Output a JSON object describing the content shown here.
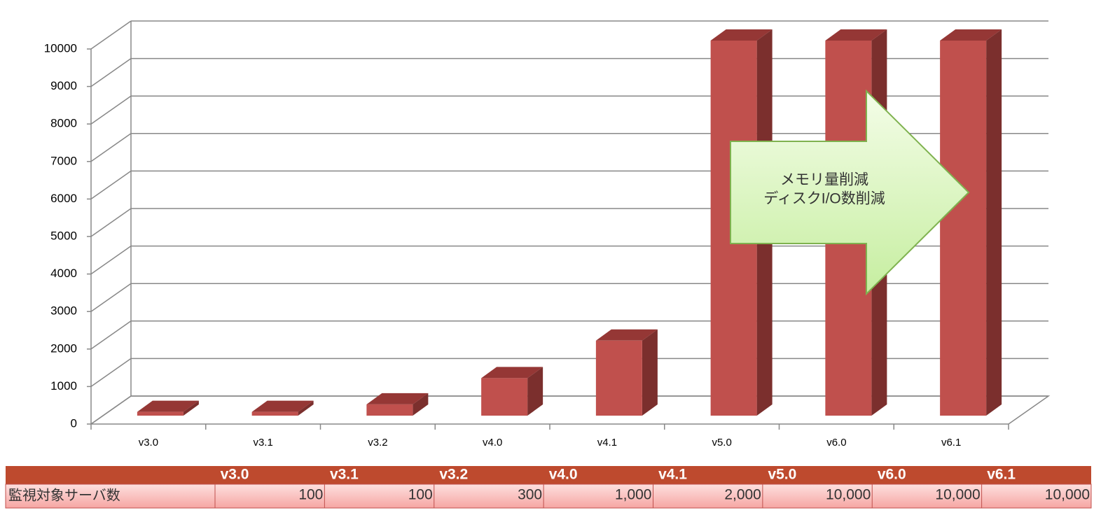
{
  "chart_data": {
    "type": "bar",
    "categories": [
      "v3.0",
      "v3.1",
      "v3.2",
      "v4.0",
      "v4.1",
      "v5.0",
      "v6.0",
      "v6.1"
    ],
    "values": [
      100,
      100,
      300,
      1000,
      2000,
      10000,
      10000,
      10000
    ],
    "value_labels": [
      "100",
      "100",
      "300",
      "1,000",
      "2,000",
      "10,000",
      "10,000",
      "10,000"
    ],
    "row_label": "監視対象サーバ数",
    "color": "#c0504d",
    "ylim": [
      0,
      10000
    ],
    "yticks": [
      0,
      1000,
      2000,
      3000,
      4000,
      5000,
      6000,
      7000,
      8000,
      9000,
      10000
    ],
    "grid": true,
    "annotation": [
      "メモリ量削減",
      "ディスクI/O数削減"
    ]
  }
}
